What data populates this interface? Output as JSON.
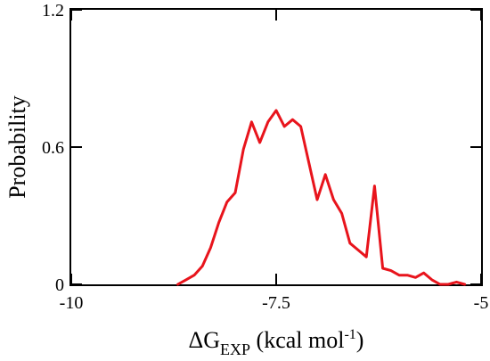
{
  "chart_data": {
    "type": "line",
    "title": "",
    "xlabel": {
      "prefix": "ΔG",
      "subscript": "EXP",
      "suffix": " (kcal mol",
      "superscript": "-1",
      "close": ")"
    },
    "ylabel": "Probability",
    "xlim": [
      -10,
      -5
    ],
    "ylim": [
      0,
      1.2
    ],
    "x_ticks": [
      -10,
      -7.5,
      -5
    ],
    "x_tick_labels": [
      "-10",
      "-7.5",
      "-5"
    ],
    "y_ticks": [
      0,
      0.6,
      1.2
    ],
    "y_tick_labels": [
      "0",
      "0.6",
      "1.2"
    ],
    "grid": false,
    "series": [
      {
        "color": "#e8141c",
        "x": [
          -8.7,
          -8.6,
          -8.5,
          -8.4,
          -8.3,
          -8.2,
          -8.1,
          -8.0,
          -7.9,
          -7.8,
          -7.7,
          -7.6,
          -7.5,
          -7.4,
          -7.3,
          -7.2,
          -7.1,
          -7.0,
          -6.9,
          -6.8,
          -6.7,
          -6.6,
          -6.5,
          -6.4,
          -6.3,
          -6.2,
          -6.1,
          -6.0,
          -5.9,
          -5.8,
          -5.7,
          -5.6,
          -5.5,
          -5.4,
          -5.3,
          -5.2
        ],
        "y": [
          0.0,
          0.02,
          0.04,
          0.08,
          0.16,
          0.27,
          0.36,
          0.4,
          0.59,
          0.71,
          0.62,
          0.71,
          0.76,
          0.69,
          0.72,
          0.69,
          0.53,
          0.37,
          0.48,
          0.37,
          0.31,
          0.18,
          0.15,
          0.12,
          0.43,
          0.07,
          0.06,
          0.04,
          0.04,
          0.03,
          0.05,
          0.02,
          0.0,
          0.0,
          0.01,
          0.0
        ]
      }
    ]
  }
}
